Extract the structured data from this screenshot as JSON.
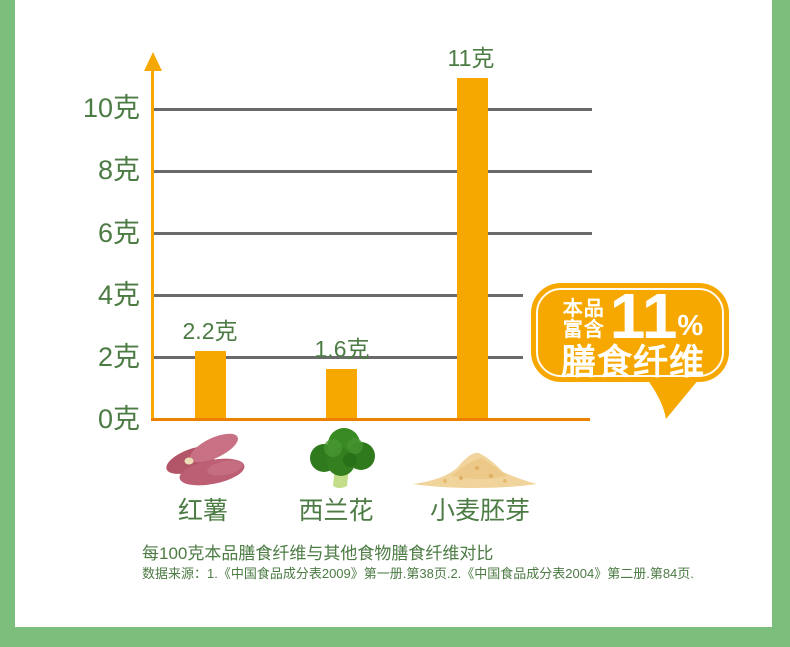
{
  "page": {
    "frame_color": "#7CBE7C",
    "background": "#ffffff"
  },
  "chart_data": {
    "type": "bar",
    "title": "每100克本品膳食纤维与其他食物膳食纤维对比",
    "source": "数据来源：1.《中国食品成分表2009》第一册.第38页.2.《中国食品成分表2004》第二册.第84页.",
    "unit": "克",
    "categories": [
      "红薯",
      "西兰花",
      "小麦胚芽"
    ],
    "values": [
      2.2,
      1.6,
      11
    ],
    "value_labels": [
      "2.2克",
      "1.6克",
      "11克"
    ],
    "y_ticks": [
      "0克",
      "2克",
      "4克",
      "6克",
      "8克",
      "10克"
    ],
    "ylim": [
      0,
      11.8
    ],
    "grid": true,
    "legend": "none",
    "colors": {
      "bar": "#F7A800",
      "axis_arrow": "#F7A800",
      "baseline": "#EC8100",
      "gridline": "#6A6A6A",
      "tick_text": "#4C7B44",
      "frame_green": "#7CBE7C"
    }
  },
  "callout": {
    "prefix_line1": "本品",
    "prefix_line2": "富含",
    "big_number": "11",
    "percent_sign": "%",
    "suffix": "膳食纤维",
    "bg": "#F7A800",
    "text_color": "#ffffff"
  },
  "food_icons": [
    {
      "name": "sweet-potato"
    },
    {
      "name": "broccoli"
    },
    {
      "name": "wheat-germ"
    }
  ]
}
